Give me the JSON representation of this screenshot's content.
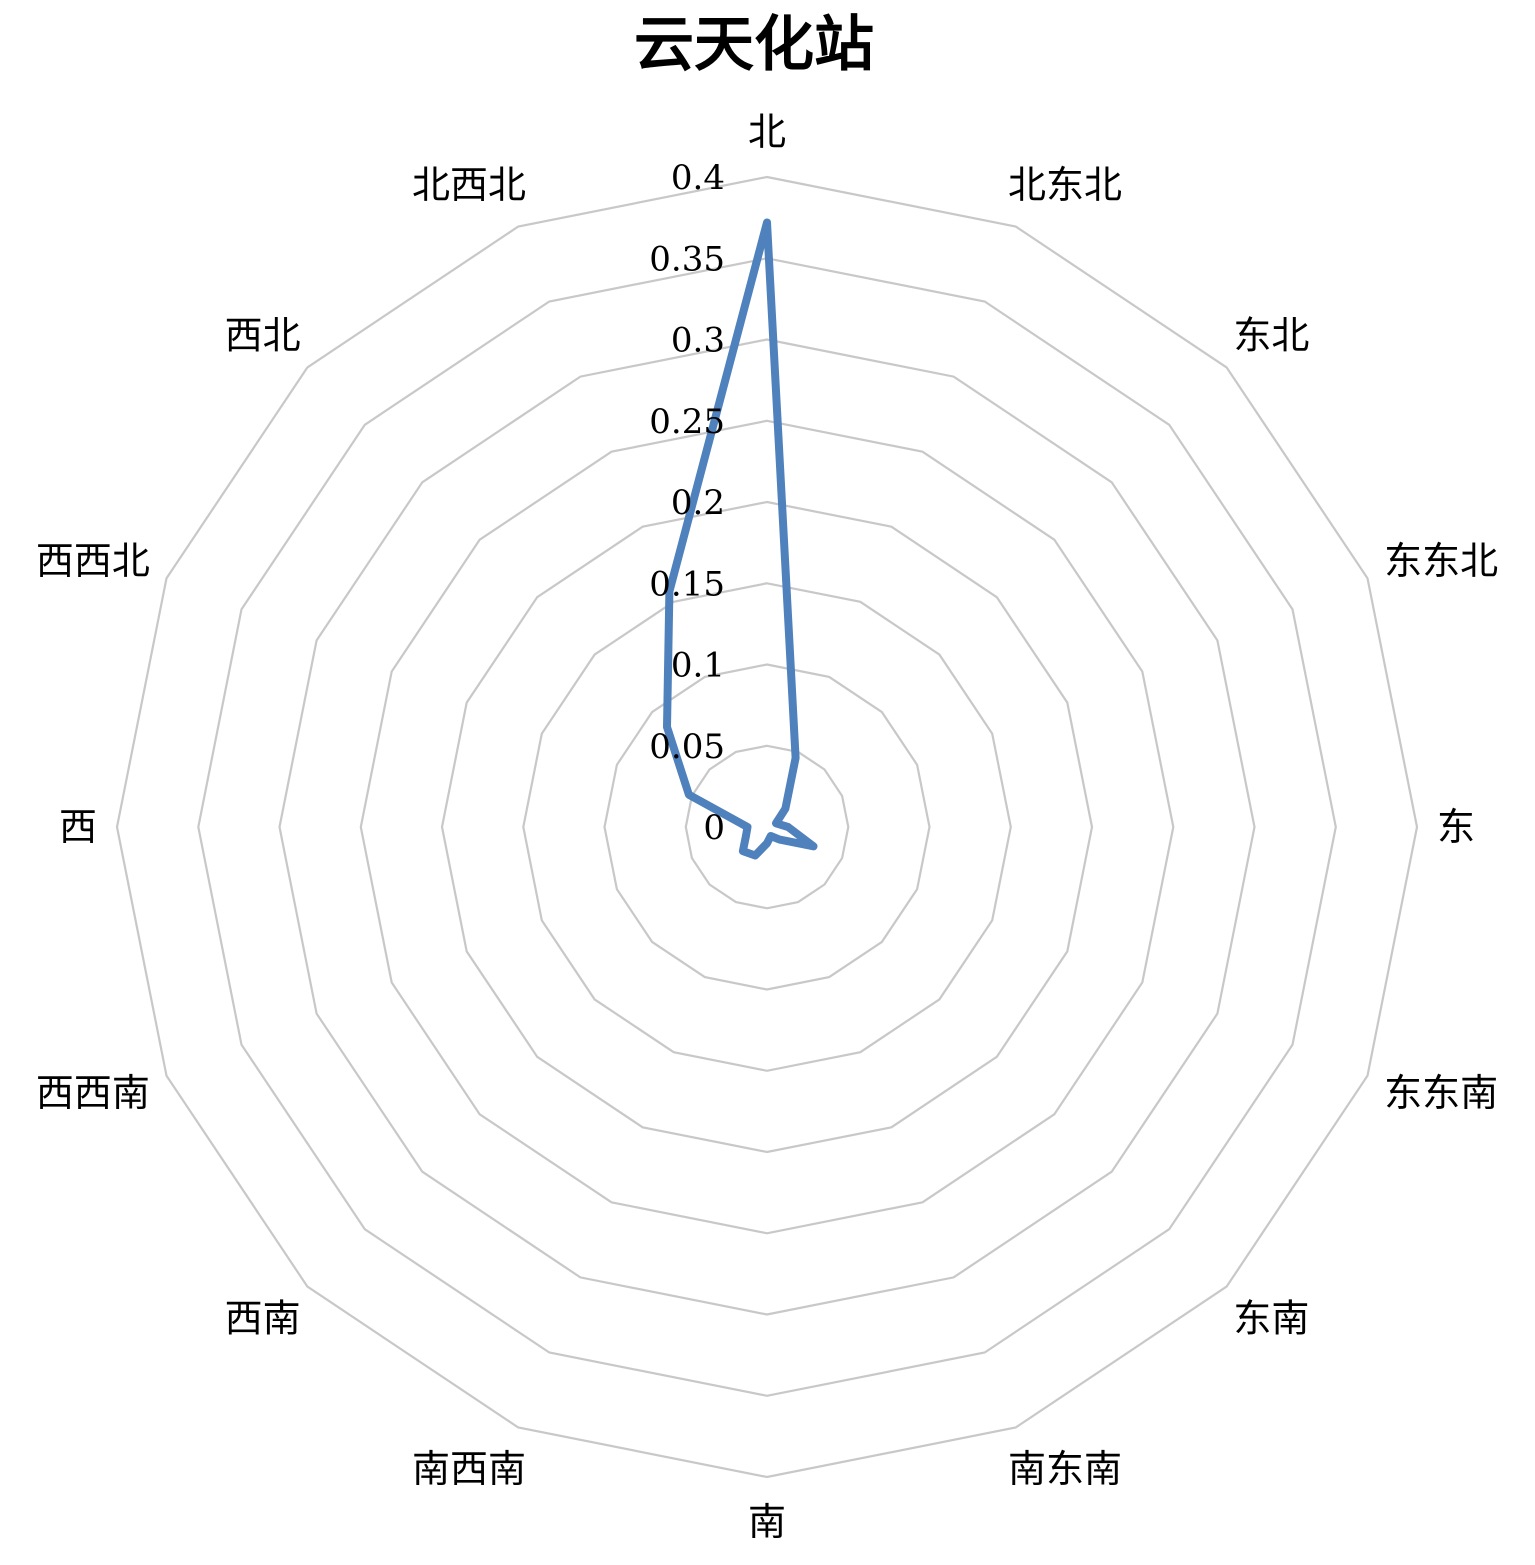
{
  "chart_data": {
    "type": "radar",
    "title": "云天化站",
    "categories": [
      "北",
      "北东北",
      "东北",
      "东东北",
      "东",
      "东东南",
      "东南",
      "南东南",
      "南",
      "南西南",
      "西南",
      "西西南",
      "西",
      "西西北",
      "西北",
      "北西北"
    ],
    "radial_ticks": [
      "0",
      "0.05",
      "0.1",
      "0.15",
      "0.2",
      "0.25",
      "0.3",
      "0.35",
      "0.4"
    ],
    "rlim": [
      0,
      0.4
    ],
    "grid": true,
    "legend": "none",
    "series": [
      {
        "values": [
          0.372,
          0.046,
          0.016,
          0.006,
          0.013,
          0.031,
          0.011,
          0.006,
          0.01,
          0.019,
          0.021,
          0.014,
          0.012,
          0.052,
          0.087,
          0.157
        ],
        "color": "#4f81bd"
      }
    ],
    "grid_color": "#c8c8c8"
  }
}
